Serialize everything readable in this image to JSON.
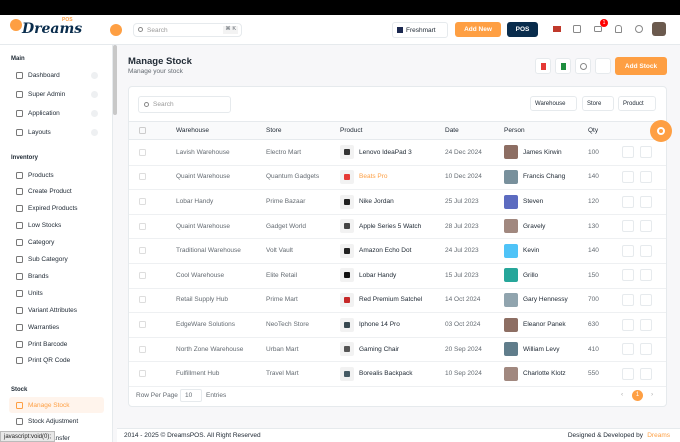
{
  "header": {
    "logo": "Dreams",
    "logo_sup": "POS",
    "search_placeholder": "Search",
    "search_shortcut": "⌘ K",
    "store": "Freshmart",
    "add_new": "Add New",
    "pos": "POS",
    "notification_count": 1
  },
  "sidebar": {
    "sections": [
      {
        "title": "Main",
        "items": [
          "Dashboard",
          "Super Admin",
          "Application",
          "Layouts"
        ]
      },
      {
        "title": "Inventory",
        "items": [
          "Products",
          "Create Product",
          "Expired Products",
          "Low Stocks",
          "Category",
          "Sub Category",
          "Brands",
          "Units",
          "Variant Attributes",
          "Warranties",
          "Print Barcode",
          "Print QR Code"
        ]
      },
      {
        "title": "Stock",
        "items": [
          "Manage Stock",
          "Stock Adjustment",
          "Stock Transfer"
        ]
      }
    ]
  },
  "page": {
    "title": "Manage Stock",
    "subtitle": "Manage your stock",
    "add_button": "Add Stock"
  },
  "filters": {
    "search_placeholder": "Search",
    "dropdowns": [
      "Warehouse",
      "Store",
      "Product"
    ]
  },
  "table": {
    "columns": [
      "Warehouse",
      "Store",
      "Product",
      "Date",
      "Person",
      "Qty"
    ],
    "rows": [
      [
        "Lavish Warehouse",
        "Electro Mart",
        "Lenovo IdeaPad 3",
        "24 Dec 2024",
        "James Kirwin",
        100
      ],
      [
        "Quaint Warehouse",
        "Quantum Gadgets",
        "Beats Pro",
        "10 Dec 2024",
        "Francis Chang",
        140
      ],
      [
        "Lobar Handy",
        "Prime Bazaar",
        "Nike Jordan",
        "25 Jul 2023",
        "Steven",
        120
      ],
      [
        "Quaint Warehouse",
        "Gadget World",
        "Apple Series 5 Watch",
        "28 Jul 2023",
        "Gravely",
        130
      ],
      [
        "Traditional Warehouse",
        "Volt Vault",
        "Amazon Echo Dot",
        "24 Jul 2023",
        "Kevin",
        140
      ],
      [
        "Cool Warehouse",
        "Elite Retail",
        "Lobar Handy",
        "15 Jul 2023",
        "Grillo",
        150
      ],
      [
        "Retail Supply Hub",
        "Prime Mart",
        "Red Premium Satchel",
        "14 Oct 2024",
        "Gary Hennessy",
        700
      ],
      [
        "EdgeWare Solutions",
        "NeoTech Store",
        "Iphone 14 Pro",
        "03 Oct 2024",
        "Eleanor Panek",
        630
      ],
      [
        "North Zone Warehouse",
        "Urban Mart",
        "Gaming Chair",
        "20 Sep 2024",
        "William Levy",
        410
      ],
      [
        "Fulfillment Hub",
        "Travel Mart",
        "Borealis Backpack",
        "10 Sep 2024",
        "Charlotte Klotz",
        550
      ]
    ]
  },
  "pagination": {
    "rows_label": "Row Per Page",
    "rows_value": 10,
    "entries_label": "Entries",
    "current_page": 1
  },
  "footer": {
    "copyright": "2014 - 2025 © DreamsPOS. All Right Reserved",
    "credit": "Designed & Developed by",
    "credit_brand": "Dreams"
  },
  "status_bar": "javascript:void(0);"
}
